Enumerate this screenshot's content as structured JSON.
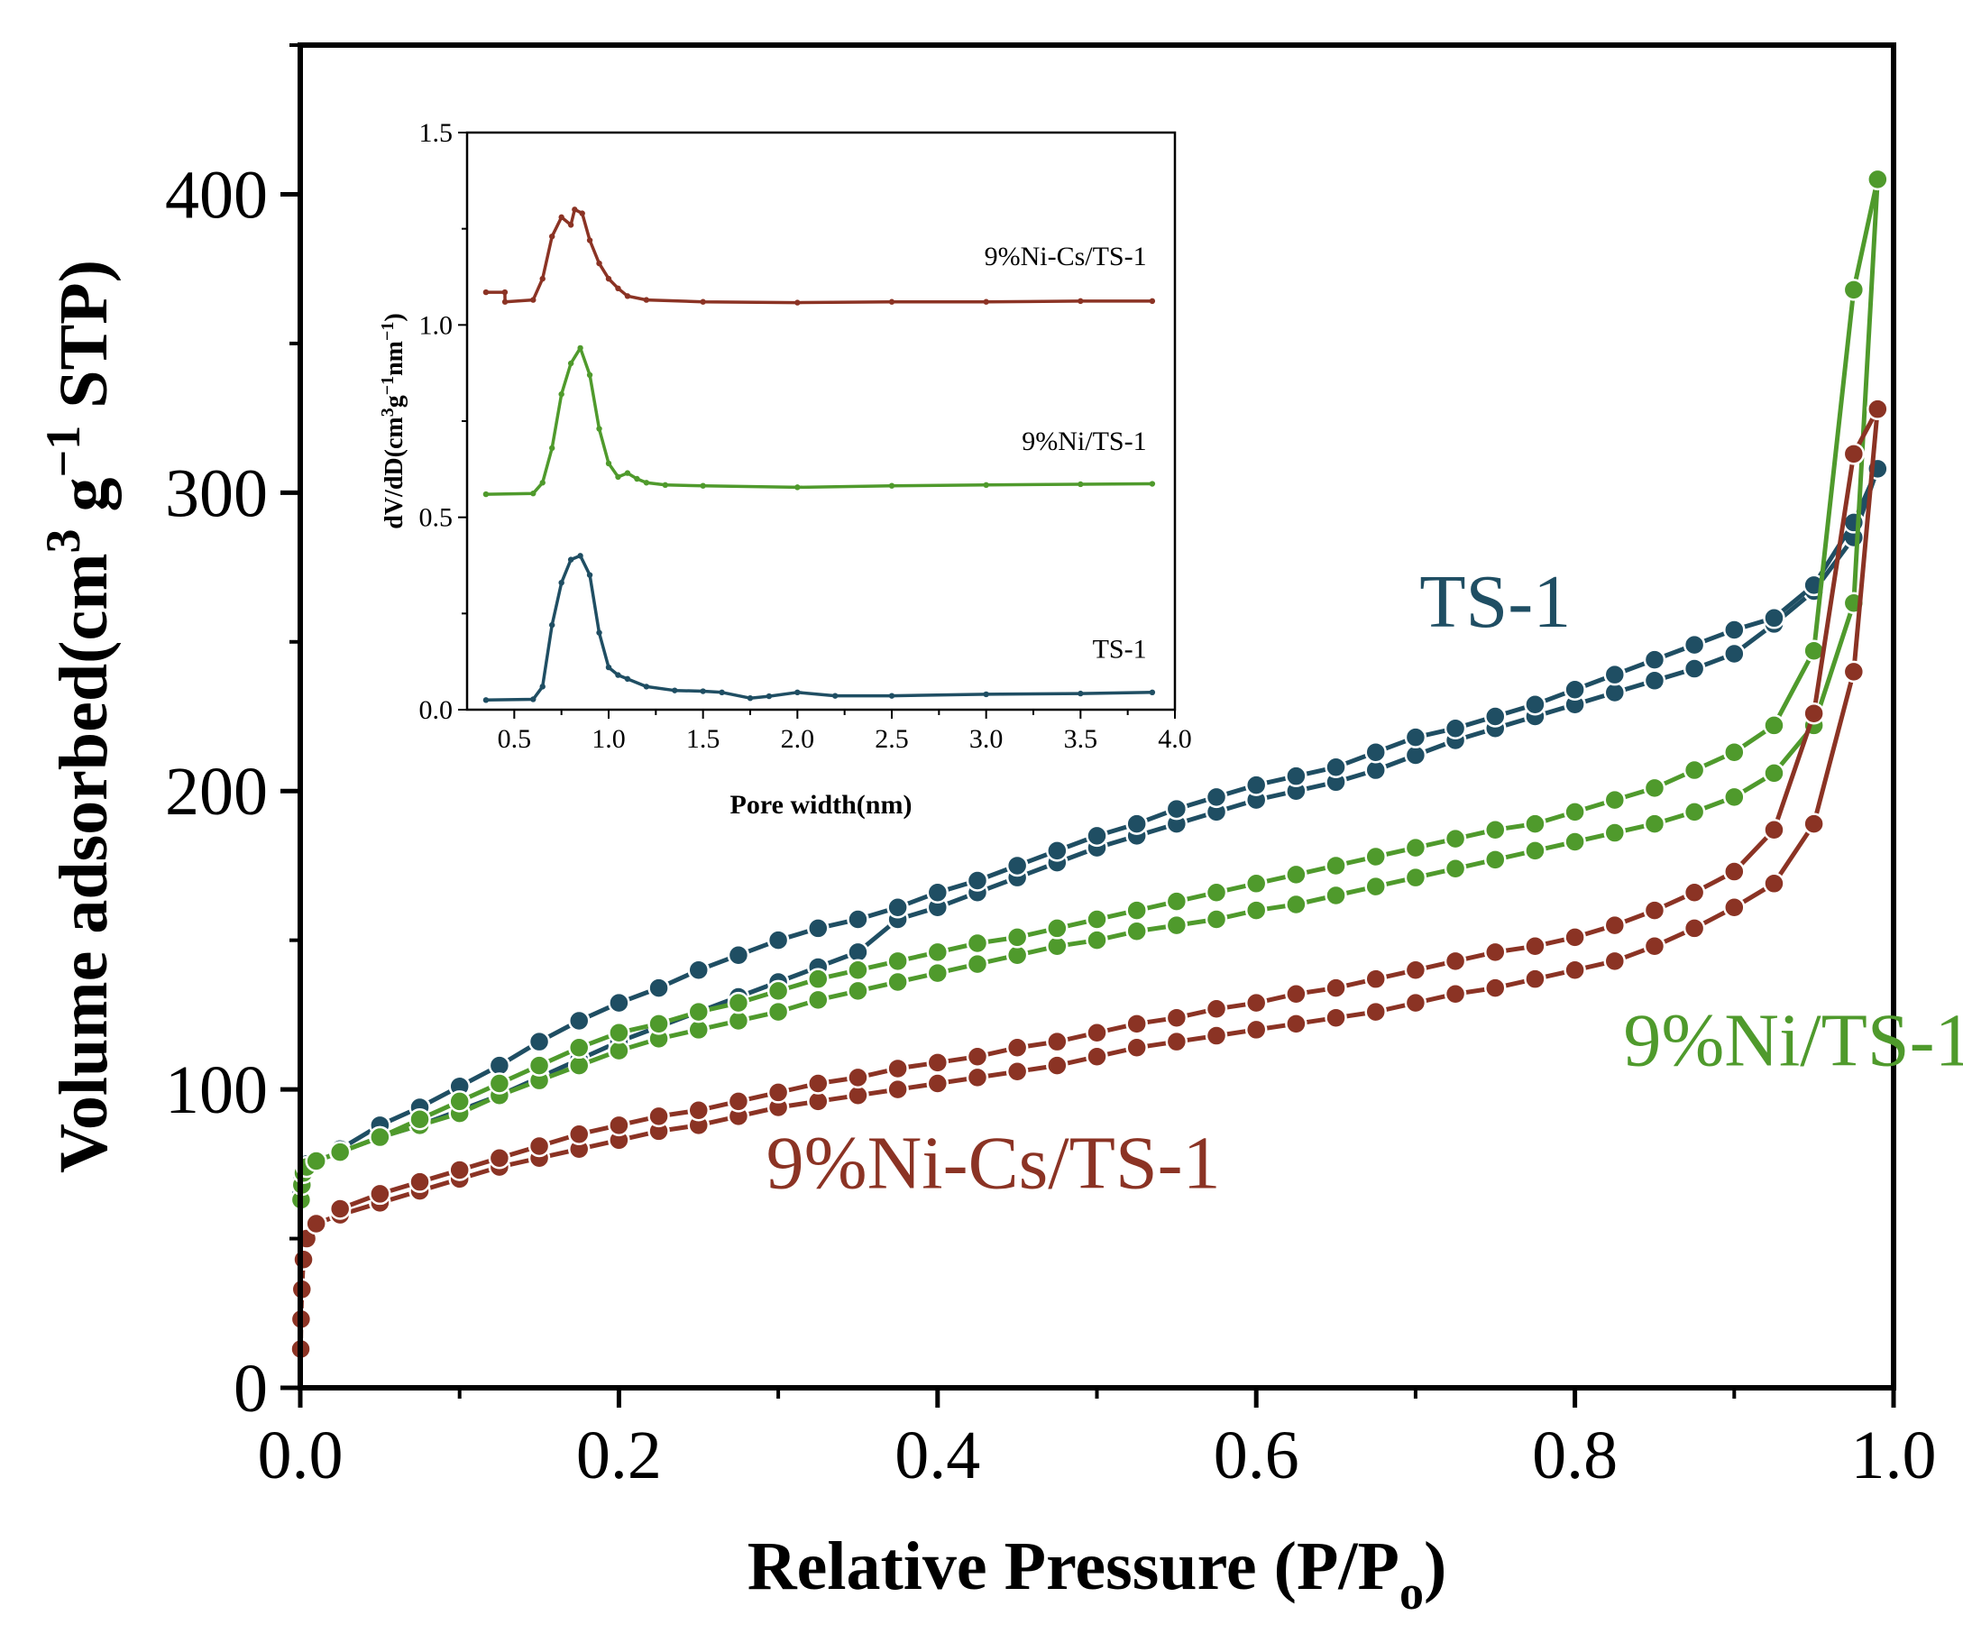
{
  "chart_data": [
    {
      "id": "main",
      "type": "line",
      "title": "",
      "xlabel": "Relative Pressure (P/P",
      "xlabel_sub": "o",
      "xlabel_end": ")",
      "ylabel_parts": [
        "Volume adsorbed(cm",
        "3",
        " g",
        "−1",
        " STP)"
      ],
      "xlim": [
        0.0,
        1.0
      ],
      "ylim": [
        0,
        450
      ],
      "xticks": [
        0.0,
        0.2,
        0.4,
        0.6,
        0.8,
        1.0
      ],
      "xtick_labels": [
        "0.0",
        "0.2",
        "0.4",
        "0.6",
        "0.8",
        "1.0"
      ],
      "yticks": [
        0,
        100,
        200,
        300,
        400
      ],
      "ytick_labels": [
        "0",
        "100",
        "200",
        "300",
        "400"
      ],
      "grid": false,
      "series": [
        {
          "name": "TS-1",
          "color": "#1f4e63",
          "label_pos": [
            0.75,
            255
          ],
          "adsorption": {
            "x": [
              0.0005,
              0.001,
              0.002,
              0.004,
              0.01,
              0.025,
              0.05,
              0.075,
              0.1,
              0.125,
              0.15,
              0.175,
              0.2,
              0.225,
              0.25,
              0.275,
              0.3,
              0.325,
              0.35,
              0.375,
              0.4,
              0.425,
              0.45,
              0.475,
              0.5,
              0.525,
              0.55,
              0.575,
              0.6,
              0.625,
              0.65,
              0.675,
              0.7,
              0.725,
              0.75,
              0.775,
              0.8,
              0.825,
              0.85,
              0.875,
              0.9,
              0.925,
              0.95,
              0.975,
              0.99
            ],
            "y": [
              65,
              70,
              73,
              75,
              76,
              79,
              84,
              88,
              93,
              98,
              104,
              110,
              116,
              121,
              126,
              131,
              136,
              141,
              146,
              157,
              161,
              166,
              171,
              176,
              181,
              185,
              189,
              193,
              197,
              200,
              203,
              207,
              212,
              217,
              221,
              225,
              229,
              233,
              237,
              241,
              246,
              256,
              267,
              285,
              308
            ]
          },
          "desorption": {
            "x": [
              0.99,
              0.975,
              0.95,
              0.925,
              0.9,
              0.875,
              0.85,
              0.825,
              0.8,
              0.775,
              0.75,
              0.725,
              0.7,
              0.675,
              0.65,
              0.625,
              0.6,
              0.575,
              0.55,
              0.525,
              0.5,
              0.475,
              0.45,
              0.425,
              0.4,
              0.375,
              0.35,
              0.325,
              0.3,
              0.275,
              0.25,
              0.225,
              0.2,
              0.175,
              0.15,
              0.125,
              0.1,
              0.075,
              0.05,
              0.025
            ],
            "y": [
              308,
              290,
              269,
              258,
              254,
              249,
              244,
              239,
              234,
              229,
              225,
              221,
              218,
              213,
              208,
              205,
              202,
              198,
              194,
              189,
              185,
              180,
              175,
              170,
              166,
              161,
              157,
              154,
              150,
              145,
              140,
              134,
              129,
              123,
              116,
              108,
              101,
              94,
              88,
              80
            ]
          }
        },
        {
          "name": "9%Ni/TS-1",
          "color": "#4f9a2c",
          "label_pos": [
            0.94,
            108
          ],
          "adsorption": {
            "x": [
              0.0005,
              0.001,
              0.002,
              0.004,
              0.01,
              0.025,
              0.05,
              0.075,
              0.1,
              0.125,
              0.15,
              0.175,
              0.2,
              0.225,
              0.25,
              0.275,
              0.3,
              0.325,
              0.35,
              0.375,
              0.4,
              0.425,
              0.45,
              0.475,
              0.5,
              0.525,
              0.55,
              0.575,
              0.6,
              0.625,
              0.65,
              0.675,
              0.7,
              0.725,
              0.75,
              0.775,
              0.8,
              0.825,
              0.85,
              0.875,
              0.9,
              0.925,
              0.95,
              0.975,
              0.99
            ],
            "y": [
              63,
              68,
              72,
              74,
              76,
              79,
              84,
              88,
              92,
              98,
              103,
              108,
              113,
              117,
              120,
              123,
              126,
              130,
              133,
              136,
              139,
              142,
              145,
              148,
              150,
              153,
              155,
              157,
              160,
              162,
              165,
              168,
              171,
              174,
              177,
              180,
              183,
              186,
              189,
              193,
              198,
              206,
              222,
              263,
              405
            ]
          },
          "desorption": {
            "x": [
              0.99,
              0.975,
              0.95,
              0.925,
              0.9,
              0.875,
              0.85,
              0.825,
              0.8,
              0.775,
              0.75,
              0.725,
              0.7,
              0.675,
              0.65,
              0.625,
              0.6,
              0.575,
              0.55,
              0.525,
              0.5,
              0.475,
              0.45,
              0.425,
              0.4,
              0.375,
              0.35,
              0.325,
              0.3,
              0.275,
              0.25,
              0.225,
              0.2,
              0.175,
              0.15,
              0.125,
              0.1,
              0.075,
              0.05,
              0.025
            ],
            "y": [
              405,
              368,
              247,
              222,
              213,
              207,
              201,
              197,
              193,
              189,
              187,
              184,
              181,
              178,
              175,
              172,
              169,
              166,
              163,
              160,
              157,
              154,
              151,
              149,
              146,
              143,
              140,
              137,
              133,
              129,
              126,
              122,
              119,
              114,
              108,
              102,
              96,
              90,
              84,
              79
            ]
          }
        },
        {
          "name": "9%Ni-Cs/TS-1",
          "color": "#8b3324",
          "label_pos": [
            0.435,
            67
          ],
          "adsorption": {
            "x": [
              0.0003,
              0.0005,
              0.001,
              0.002,
              0.004,
              0.01,
              0.025,
              0.05,
              0.075,
              0.1,
              0.125,
              0.15,
              0.175,
              0.2,
              0.225,
              0.25,
              0.275,
              0.3,
              0.325,
              0.35,
              0.375,
              0.4,
              0.425,
              0.45,
              0.475,
              0.5,
              0.525,
              0.55,
              0.575,
              0.6,
              0.625,
              0.65,
              0.675,
              0.7,
              0.725,
              0.75,
              0.775,
              0.8,
              0.825,
              0.85,
              0.875,
              0.9,
              0.925,
              0.95,
              0.975,
              0.99
            ],
            "y": [
              13,
              23,
              33,
              43,
              50,
              55,
              58,
              62,
              66,
              70,
              74,
              77,
              80,
              83,
              86,
              88,
              91,
              94,
              96,
              98,
              100,
              102,
              104,
              106,
              108,
              111,
              114,
              116,
              118,
              120,
              122,
              124,
              126,
              129,
              132,
              134,
              137,
              140,
              143,
              148,
              154,
              161,
              169,
              189,
              240,
              328
            ]
          },
          "desorption": {
            "x": [
              0.99,
              0.975,
              0.95,
              0.925,
              0.9,
              0.875,
              0.85,
              0.825,
              0.8,
              0.775,
              0.75,
              0.725,
              0.7,
              0.675,
              0.65,
              0.625,
              0.6,
              0.575,
              0.55,
              0.525,
              0.5,
              0.475,
              0.45,
              0.425,
              0.4,
              0.375,
              0.35,
              0.325,
              0.3,
              0.275,
              0.25,
              0.225,
              0.2,
              0.175,
              0.15,
              0.125,
              0.1,
              0.075,
              0.05,
              0.025
            ],
            "y": [
              328,
              313,
              226,
              187,
              173,
              166,
              160,
              155,
              151,
              148,
              146,
              143,
              140,
              137,
              134,
              132,
              129,
              127,
              124,
              122,
              119,
              116,
              114,
              111,
              109,
              107,
              104,
              102,
              99,
              96,
              93,
              91,
              88,
              85,
              81,
              77,
              73,
              69,
              65,
              60
            ]
          }
        }
      ]
    },
    {
      "id": "inset",
      "type": "line",
      "title": "",
      "xlabel": "Pore width(nm)",
      "ylabel_parts": [
        "dV/dD(cm",
        "3",
        "g",
        "−1",
        "nm",
        "−1",
        ")"
      ],
      "xlim": [
        0.25,
        4.0
      ],
      "ylim": [
        0,
        1.5
      ],
      "xticks": [
        0.5,
        1.0,
        1.5,
        2.0,
        2.5,
        3.0,
        3.5,
        4.0
      ],
      "xtick_labels": [
        "0.5",
        "1.0",
        "1.5",
        "2.0",
        "2.5",
        "3.0",
        "3.5",
        "4.0"
      ],
      "yticks": [
        0,
        0.5,
        1.0,
        1.5
      ],
      "ytick_labels": [
        "0.0",
        "0.5",
        "1.0",
        "1.5"
      ],
      "grid": false,
      "series": [
        {
          "name": "9%Ni-Cs/TS-1",
          "color": "#8b3324",
          "label_pos": [
            3.85,
            1.155
          ],
          "x": [
            0.35,
            0.45,
            0.451,
            0.6,
            0.65,
            0.7,
            0.75,
            0.8,
            0.82,
            0.86,
            0.9,
            0.95,
            1.0,
            1.05,
            1.1,
            1.2,
            1.5,
            2.0,
            2.5,
            3.0,
            3.5,
            3.88
          ],
          "y": [
            1.085,
            1.085,
            1.06,
            1.065,
            1.12,
            1.23,
            1.28,
            1.26,
            1.3,
            1.29,
            1.22,
            1.16,
            1.12,
            1.095,
            1.075,
            1.065,
            1.06,
            1.058,
            1.06,
            1.06,
            1.062,
            1.062
          ]
        },
        {
          "name": "9%Ni/TS-1",
          "color": "#4f9a2c",
          "label_pos": [
            3.85,
            0.675
          ],
          "x": [
            0.35,
            0.6,
            0.65,
            0.7,
            0.75,
            0.8,
            0.85,
            0.9,
            0.95,
            1.0,
            1.05,
            1.1,
            1.15,
            1.2,
            1.3,
            1.5,
            2.0,
            2.5,
            3.0,
            3.5,
            3.88
          ],
          "y": [
            0.56,
            0.562,
            0.59,
            0.68,
            0.82,
            0.9,
            0.94,
            0.87,
            0.73,
            0.64,
            0.605,
            0.615,
            0.6,
            0.59,
            0.584,
            0.582,
            0.578,
            0.582,
            0.584,
            0.586,
            0.587
          ]
        },
        {
          "name": "TS-1",
          "color": "#1f4e63",
          "label_pos": [
            3.85,
            0.135
          ],
          "x": [
            0.35,
            0.6,
            0.65,
            0.7,
            0.75,
            0.8,
            0.85,
            0.9,
            0.95,
            1.0,
            1.05,
            1.1,
            1.2,
            1.35,
            1.5,
            1.6,
            1.75,
            1.85,
            2.0,
            2.2,
            2.5,
            3.0,
            3.5,
            3.88
          ],
          "y": [
            0.025,
            0.027,
            0.06,
            0.22,
            0.33,
            0.39,
            0.4,
            0.35,
            0.2,
            0.11,
            0.09,
            0.08,
            0.06,
            0.05,
            0.048,
            0.045,
            0.03,
            0.035,
            0.045,
            0.036,
            0.036,
            0.04,
            0.042,
            0.045
          ]
        }
      ]
    }
  ]
}
